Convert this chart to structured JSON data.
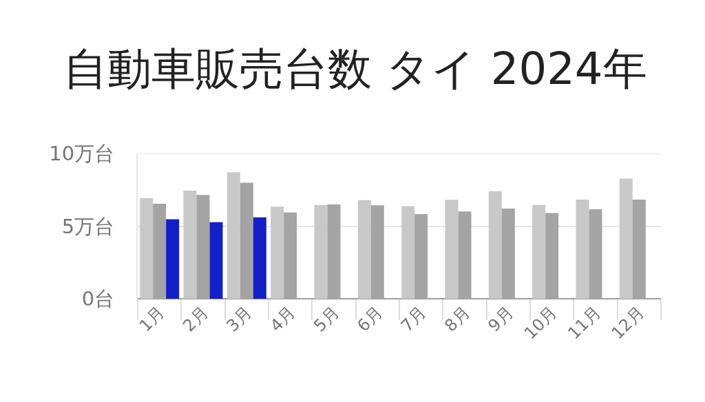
{
  "chart_data": {
    "type": "bar",
    "title": "自動車販売台数 タイ 2024年",
    "categories": [
      "1月",
      "2月",
      "3月",
      "4月",
      "5月",
      "6月",
      "7月",
      "8月",
      "9月",
      "10月",
      "11月",
      "12月"
    ],
    "series": [
      {
        "color": "#c8c8c8",
        "values": [
          6.93,
          7.44,
          8.71,
          6.34,
          6.46,
          6.79,
          6.38,
          6.81,
          7.41,
          6.46,
          6.82,
          8.27
        ]
      },
      {
        "color": "#a4a4a4",
        "values": [
          6.54,
          7.15,
          7.99,
          5.94,
          6.49,
          6.43,
          5.83,
          6.01,
          6.21,
          5.9,
          6.16,
          6.82
        ]
      },
      {
        "color": "#1220c6",
        "values": [
          5.47,
          5.27,
          5.6,
          null,
          null,
          null,
          null,
          null,
          null,
          null,
          null,
          null
        ]
      }
    ],
    "ylim": [
      0,
      10
    ],
    "yticks": [
      {
        "value": 0,
        "label": "0台"
      },
      {
        "value": 5,
        "label": "5万台"
      },
      {
        "value": 10,
        "label": "10万台"
      }
    ],
    "grid": "y"
  }
}
